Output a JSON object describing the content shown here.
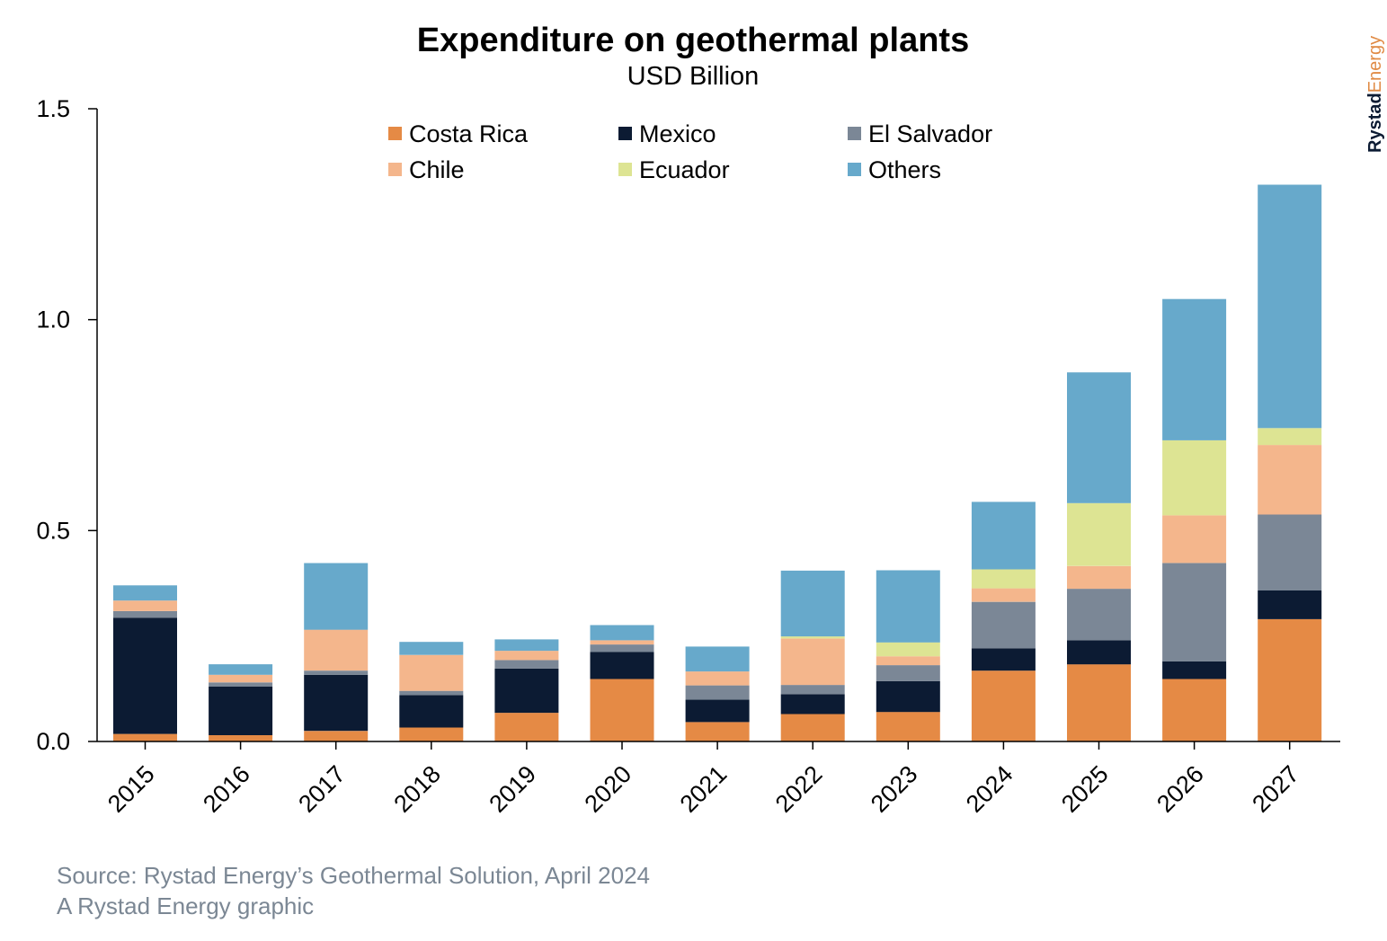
{
  "chart_data": {
    "type": "bar",
    "stacked": true,
    "title": "Expenditure on geothermal plants",
    "subtitle": "USD Billion",
    "categories": [
      "2015",
      "2016",
      "2017",
      "2018",
      "2019",
      "2020",
      "2021",
      "2022",
      "2023",
      "2024",
      "2025",
      "2026",
      "2027"
    ],
    "ylim": [
      0,
      1.5
    ],
    "yticks": [
      0.0,
      0.5,
      1.0,
      1.5
    ],
    "ytick_labels": [
      "0.0",
      "0.5",
      "1.0",
      "1.5"
    ],
    "legend_placement": "top",
    "grid": false,
    "series": [
      {
        "name": "Costa Rica",
        "color": "#e58a45",
        "values": [
          0.018,
          0.015,
          0.025,
          0.033,
          0.068,
          0.148,
          0.046,
          0.065,
          0.07,
          0.168,
          0.183,
          0.148,
          0.29
        ]
      },
      {
        "name": "Mexico",
        "color": "#0c1b33",
        "values": [
          0.275,
          0.115,
          0.133,
          0.077,
          0.105,
          0.064,
          0.053,
          0.047,
          0.073,
          0.053,
          0.057,
          0.042,
          0.068
        ]
      },
      {
        "name": "El Salvador",
        "color": "#7b8796",
        "values": [
          0.016,
          0.01,
          0.01,
          0.01,
          0.02,
          0.018,
          0.034,
          0.022,
          0.038,
          0.11,
          0.122,
          0.233,
          0.18
        ]
      },
      {
        "name": "Chile",
        "color": "#f4b68c",
        "values": [
          0.025,
          0.018,
          0.097,
          0.085,
          0.022,
          0.01,
          0.033,
          0.11,
          0.021,
          0.032,
          0.054,
          0.113,
          0.165
        ]
      },
      {
        "name": "Ecuador",
        "color": "#dde493",
        "values": [
          0,
          0,
          0,
          0,
          0,
          0,
          0,
          0.005,
          0.033,
          0.045,
          0.149,
          0.178,
          0.04
        ]
      },
      {
        "name": "Others",
        "color": "#67a9cb",
        "values": [
          0.036,
          0.025,
          0.158,
          0.031,
          0.027,
          0.036,
          0.059,
          0.156,
          0.171,
          0.16,
          0.31,
          0.335,
          0.577
        ]
      }
    ],
    "source_line1": "Source: Rystad Energy’s Geothermal Solution, April 2024",
    "source_line2": "A Rystad Energy graphic"
  },
  "branding": {
    "logo_part1": "Rystad",
    "logo_part2": "Energy",
    "logo_part1_color": "#0c1b33",
    "logo_part2_color": "#e08a44"
  }
}
